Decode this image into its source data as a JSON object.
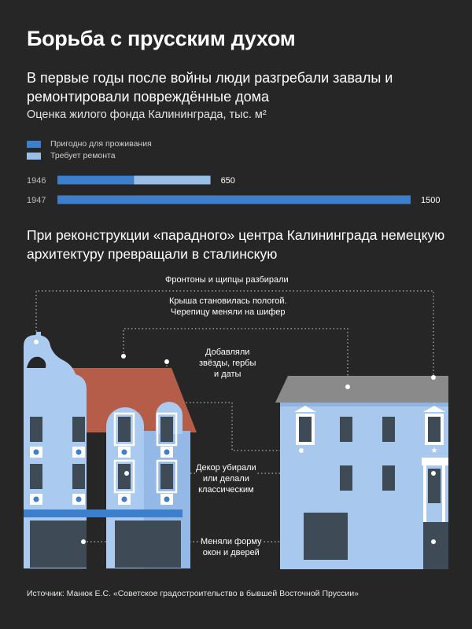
{
  "title": "Борьба с прусским духом",
  "subtitle": "В первые годы после войны люди разгребали завалы и ремонтировали повреждённые дома",
  "chart_data": {
    "type": "bar",
    "stacked": true,
    "orientation": "horizontal",
    "title": "Оценка жилого фонда Калининграда, тыс. м²",
    "categories": [
      "1946",
      "1947"
    ],
    "series": [
      {
        "name": "Пригодно для проживания",
        "color": "#3b7fcd",
        "values": [
          325,
          1500
        ]
      },
      {
        "name": "Требует ремонта",
        "color": "#98bfe6",
        "values": [
          325,
          0
        ]
      }
    ],
    "totals": [
      650,
      1500
    ],
    "total_labels": [
      "650",
      "1500"
    ],
    "xlim": [
      0,
      1500
    ],
    "grid": false,
    "legend": "top-left"
  },
  "section2": {
    "heading": "При реконструкции «парадного» центра Калининграда немецкую архитектуру превращали в сталинскую",
    "notes": [
      "Фронтоны и щипцы разбирали",
      "Крыша становилась пологой.\nЧерепицу меняли на шифер",
      "Добавляли\nзвёзды, гербы\nи даты",
      "Декор убирали\nили делали\nклассическим",
      "Меняли форму\nокон и дверей"
    ]
  },
  "colors": {
    "background": "#262626",
    "building_light": "#a9c8ee",
    "building_mid": "#90b4e2",
    "roof_red": "#b55d48",
    "roof_grey": "#8a8a8a",
    "dark_panel": "#3e4a56"
  },
  "source": "Источник: Манюк Е.С. «Советское градостроительство в бывшей Восточной Пруссии»"
}
